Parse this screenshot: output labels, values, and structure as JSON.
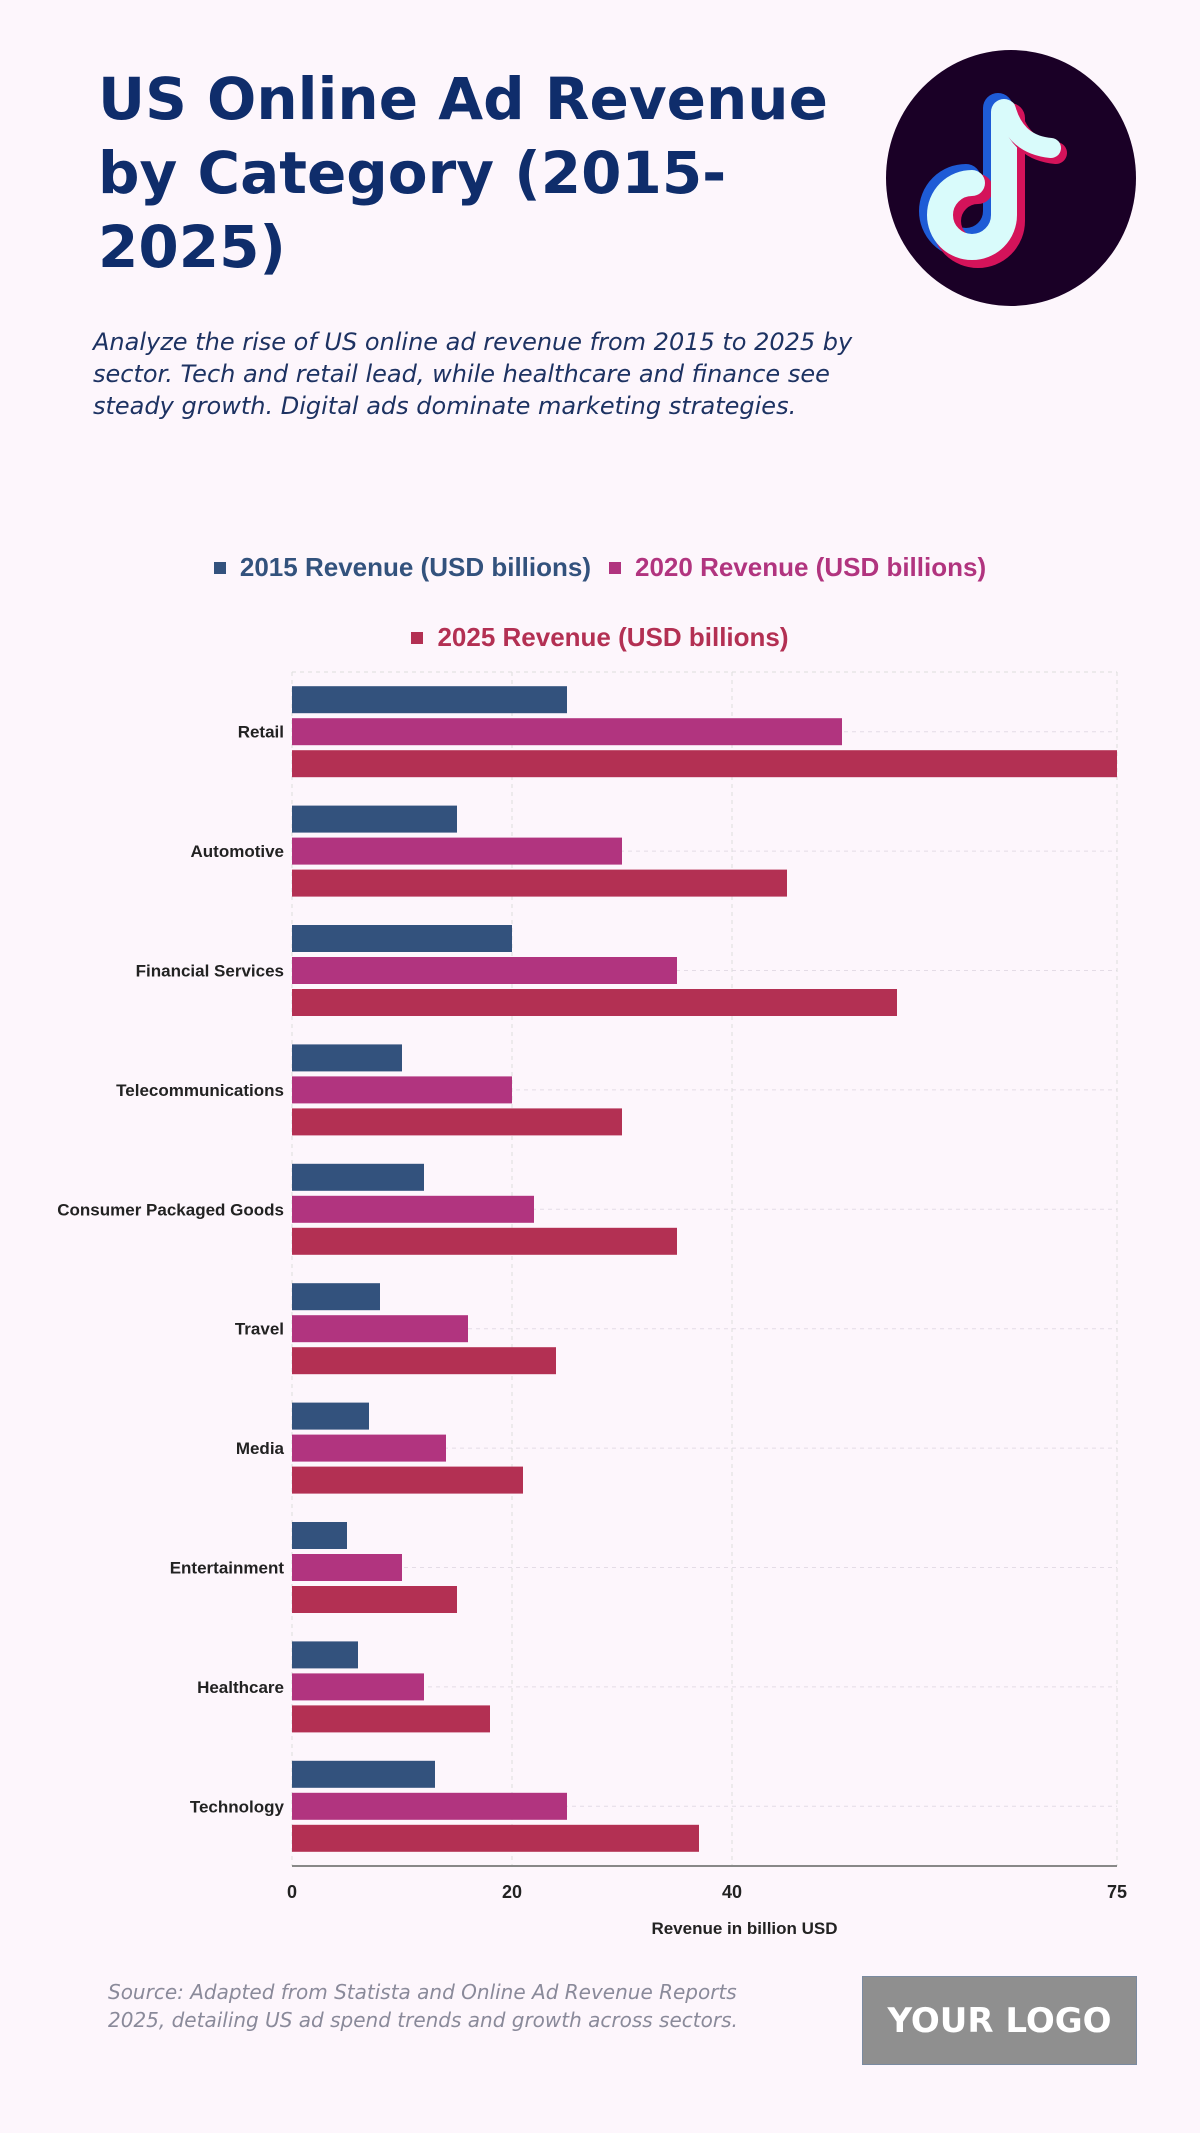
{
  "header": {
    "title": "US Online Ad Revenue by Category (2015-2025)",
    "subtitle": "Analyze the rise of US online ad revenue from 2015 to 2025 by sector. Tech and retail lead, while healthcare and finance see steady growth. Digital ads dominate marketing strategies.",
    "logo_icon": "tiktok-logo-icon"
  },
  "footer": {
    "source": "Source: Adapted from Statista and Online Ad Revenue Reports 2025, detailing US ad spend trends and growth across sectors.",
    "brand": "YOUR LOGO"
  },
  "chart_data": {
    "type": "bar",
    "orientation": "horizontal",
    "categories": [
      "Retail",
      "Automotive",
      "Financial Services",
      "Telecommunications",
      "Consumer Packaged Goods",
      "Travel",
      "Media",
      "Entertainment",
      "Healthcare",
      "Technology"
    ],
    "series": [
      {
        "name": "2015 Revenue (USD billions)",
        "color": "#33527d",
        "values": [
          25,
          15,
          20,
          10,
          12,
          8,
          7,
          5,
          6,
          13
        ]
      },
      {
        "name": "2020 Revenue (USD billions)",
        "color": "#b1347f",
        "values": [
          50,
          30,
          35,
          20,
          22,
          16,
          14,
          10,
          12,
          25
        ]
      },
      {
        "name": "2025 Revenue (USD billions)",
        "color": "#b33053",
        "values": [
          75,
          45,
          55,
          30,
          35,
          24,
          21,
          15,
          18,
          37
        ]
      }
    ],
    "xlabel": "Revenue in billion USD",
    "ylabel": "",
    "xlim": [
      0,
      75
    ],
    "xticks": [
      0,
      20,
      40,
      75
    ],
    "grid": true,
    "legend_position": "top"
  }
}
